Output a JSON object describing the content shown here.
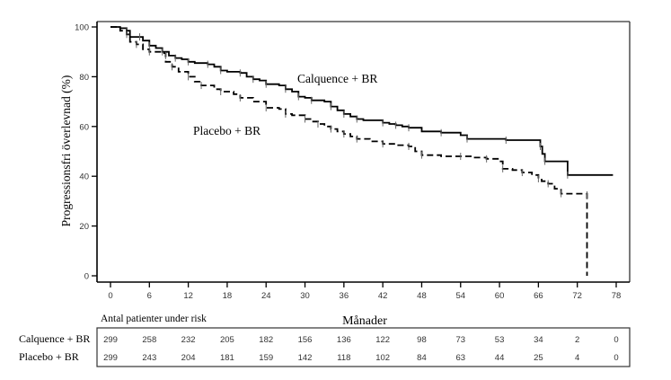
{
  "chart_data": {
    "type": "line",
    "subtype": "kaplan-meier",
    "title": "",
    "xlabel": "Månader",
    "ylabel": "Progressionsfri överlevnad (%)",
    "xlim": [
      0,
      78
    ],
    "ylim": [
      0,
      100
    ],
    "x_ticks": [
      0,
      6,
      12,
      18,
      24,
      30,
      36,
      42,
      48,
      54,
      60,
      66,
      72,
      78
    ],
    "y_ticks": [
      0,
      20,
      40,
      60,
      80,
      100
    ],
    "grid": false,
    "series": [
      {
        "name": "Calquence + BR",
        "style": "solid",
        "color": "#000000",
        "points": [
          [
            0,
            100
          ],
          [
            1.5,
            99.5
          ],
          [
            2.5,
            98.5
          ],
          [
            3,
            96
          ],
          [
            4.5,
            96
          ],
          [
            5,
            94.5
          ],
          [
            6,
            92.5
          ],
          [
            7,
            91.5
          ],
          [
            8,
            90
          ],
          [
            9,
            88.5
          ],
          [
            10,
            87.5
          ],
          [
            11,
            87
          ],
          [
            12,
            86
          ],
          [
            13,
            85.5
          ],
          [
            15,
            85
          ],
          [
            16,
            84
          ],
          [
            17,
            82.5
          ],
          [
            18,
            82
          ],
          [
            20,
            81.5
          ],
          [
            21,
            80
          ],
          [
            22,
            79
          ],
          [
            23,
            78.5
          ],
          [
            24,
            77
          ],
          [
            26,
            76.5
          ],
          [
            27,
            75
          ],
          [
            28,
            74
          ],
          [
            29,
            72
          ],
          [
            30,
            71.5
          ],
          [
            31,
            70.5
          ],
          [
            33,
            70
          ],
          [
            34,
            68
          ],
          [
            35,
            66.5
          ],
          [
            36,
            65
          ],
          [
            37,
            64
          ],
          [
            38,
            63
          ],
          [
            39,
            62.5
          ],
          [
            42,
            61.5
          ],
          [
            43,
            61
          ],
          [
            44,
            60.5
          ],
          [
            45,
            60
          ],
          [
            46,
            59.5
          ],
          [
            48,
            58
          ],
          [
            51,
            57.5
          ],
          [
            54,
            56.5
          ],
          [
            55,
            55
          ],
          [
            60.5,
            55
          ],
          [
            61,
            54.5
          ],
          [
            66,
            54.5
          ],
          [
            66.3,
            52
          ],
          [
            66.6,
            49
          ],
          [
            67,
            46
          ],
          [
            70.5,
            46
          ],
          [
            70.5,
            40.5
          ],
          [
            77.5,
            40.5
          ]
        ]
      },
      {
        "name": "Placebo + BR",
        "style": "dashed",
        "color": "#000000",
        "points": [
          [
            0,
            100
          ],
          [
            1.5,
            98.5
          ],
          [
            2.5,
            97
          ],
          [
            3,
            94
          ],
          [
            4,
            93
          ],
          [
            5,
            91
          ],
          [
            6,
            90
          ],
          [
            8,
            89.5
          ],
          [
            8.5,
            88.5
          ],
          [
            8.5,
            86
          ],
          [
            9.5,
            84
          ],
          [
            10.5,
            82
          ],
          [
            12,
            80
          ],
          [
            13,
            78
          ],
          [
            14,
            76.5
          ],
          [
            16,
            75
          ],
          [
            17,
            74
          ],
          [
            19,
            73
          ],
          [
            20,
            71.5
          ],
          [
            22,
            70
          ],
          [
            24,
            67.5
          ],
          [
            26,
            67
          ],
          [
            27,
            65
          ],
          [
            28,
            64.5
          ],
          [
            30,
            63
          ],
          [
            31,
            62
          ],
          [
            32,
            61
          ],
          [
            33,
            60
          ],
          [
            34,
            59
          ],
          [
            35,
            58
          ],
          [
            36,
            57
          ],
          [
            37,
            56
          ],
          [
            38,
            55
          ],
          [
            40,
            54
          ],
          [
            42,
            53
          ],
          [
            44,
            52.5
          ],
          [
            46,
            52
          ],
          [
            47,
            50
          ],
          [
            48,
            48.5
          ],
          [
            51,
            48
          ],
          [
            54,
            48
          ],
          [
            56,
            47.5
          ],
          [
            58,
            47
          ],
          [
            60,
            46
          ],
          [
            60.5,
            43
          ],
          [
            62,
            42.5
          ],
          [
            63.5,
            41.5
          ],
          [
            65,
            40.5
          ],
          [
            66,
            39
          ],
          [
            66.5,
            38
          ],
          [
            67.5,
            37
          ],
          [
            68.5,
            35
          ],
          [
            69.5,
            33
          ],
          [
            72,
            33
          ],
          [
            73.5,
            32.5
          ],
          [
            73.5,
            0
          ]
        ]
      }
    ],
    "annotations": [
      {
        "text": "Calquence + BR",
        "x": 36,
        "y": 80
      },
      {
        "text": "Placebo + BR",
        "x": 22,
        "y": 58
      }
    ]
  },
  "risk_table": {
    "title": "Antal patienter under risk",
    "time_points": [
      0,
      6,
      12,
      18,
      24,
      30,
      36,
      42,
      48,
      54,
      60,
      66,
      72,
      78
    ],
    "rows": [
      {
        "label": "Calquence + BR",
        "values": [
          299,
          258,
          232,
          205,
          182,
          156,
          136,
          122,
          98,
          73,
          53,
          34,
          2,
          0
        ]
      },
      {
        "label": "Placebo + BR",
        "values": [
          299,
          243,
          204,
          181,
          159,
          142,
          118,
          102,
          84,
          63,
          44,
          25,
          4,
          0
        ]
      }
    ]
  }
}
